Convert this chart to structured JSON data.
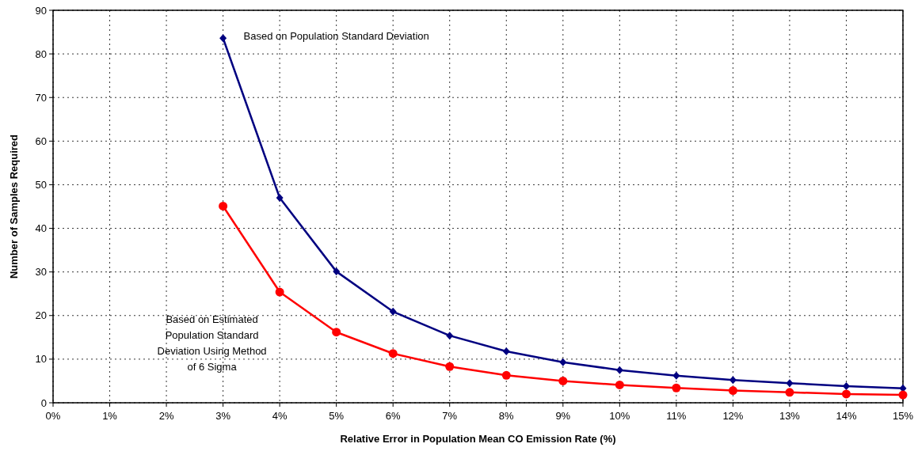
{
  "chart_data": {
    "type": "line",
    "xlabel": "Relative Error in Population Mean CO Emission Rate (%)",
    "ylabel": "Number of Samples Required",
    "x": [
      3,
      4,
      5,
      6,
      7,
      8,
      9,
      10,
      11,
      12,
      13,
      14,
      15
    ],
    "series": [
      {
        "name": "Based on Population Standard Deviation",
        "color": "#000080",
        "marker": "diamond",
        "values": [
          83.6,
          47.0,
          30.1,
          20.9,
          15.4,
          11.8,
          9.3,
          7.5,
          6.2,
          5.2,
          4.5,
          3.8,
          3.3
        ]
      },
      {
        "name": "Based on Estimated Population Standard Deviation Using Method of 6 Sigma",
        "color": "#ff0000",
        "marker": "circle",
        "values": [
          45.1,
          25.4,
          16.2,
          11.3,
          8.3,
          6.3,
          5.0,
          4.1,
          3.4,
          2.8,
          2.4,
          2.0,
          1.8
        ]
      }
    ],
    "xlim": [
      0,
      15
    ],
    "xticks": [
      {
        "value": 0,
        "label": "0%"
      },
      {
        "value": 1,
        "label": "1%"
      },
      {
        "value": 2,
        "label": "2%"
      },
      {
        "value": 3,
        "label": "3%"
      },
      {
        "value": 4,
        "label": "4%"
      },
      {
        "value": 5,
        "label": "5%"
      },
      {
        "value": 6,
        "label": "6%"
      },
      {
        "value": 7,
        "label": "7%"
      },
      {
        "value": 8,
        "label": "8%"
      },
      {
        "value": 9,
        "label": "9%"
      },
      {
        "value": 10,
        "label": "10%"
      },
      {
        "value": 11,
        "label": "11%"
      },
      {
        "value": 12,
        "label": "12%"
      },
      {
        "value": 13,
        "label": "13%"
      },
      {
        "value": 14,
        "label": "14%"
      },
      {
        "value": 15,
        "label": "15%"
      }
    ],
    "ylim": [
      0,
      90
    ],
    "yticks": [
      0,
      10,
      20,
      30,
      40,
      50,
      60,
      70,
      80,
      90
    ],
    "grid": true,
    "line_style": "solid"
  }
}
